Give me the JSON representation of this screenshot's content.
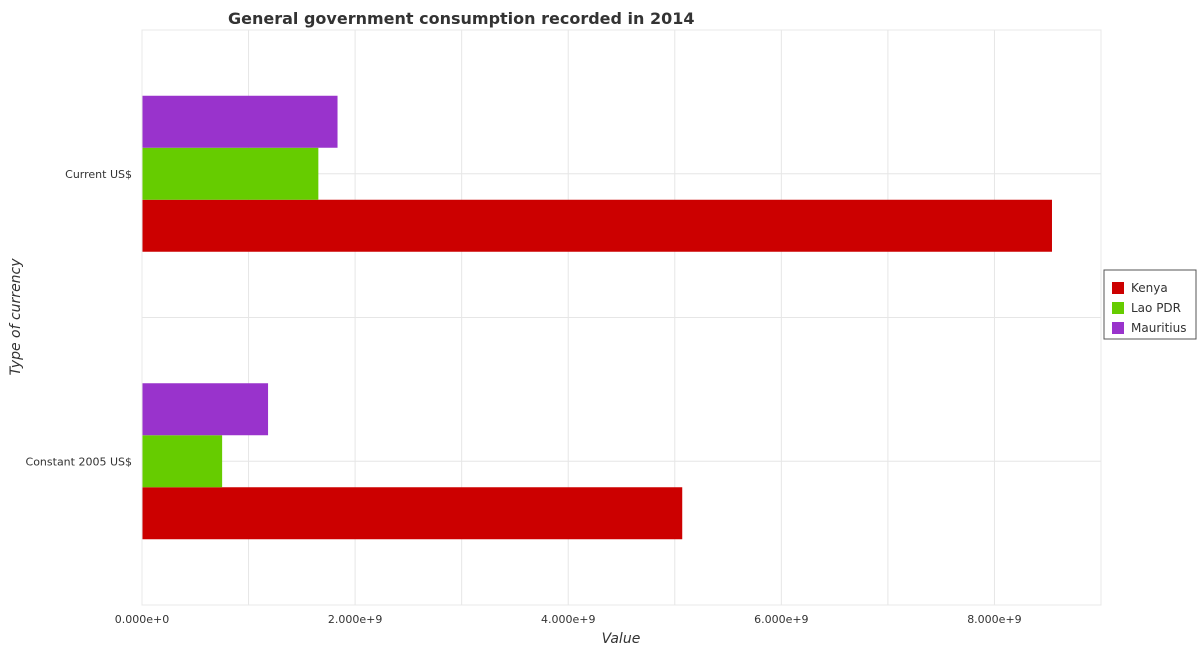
{
  "chart_data": {
    "type": "bar",
    "orientation": "horizontal",
    "title": "General government consumption recorded in 2014",
    "xlabel": "Value",
    "ylabel": "Type of currency",
    "categories": [
      "Constant 2005 US$",
      "Current US$"
    ],
    "series": [
      {
        "name": "Kenya",
        "color": "#cc0000",
        "values": [
          5070000000,
          8540000000
        ]
      },
      {
        "name": "Lao PDR",
        "color": "#66cc00",
        "values": [
          752000000,
          1655000000
        ]
      },
      {
        "name": "Mauritius",
        "color": "#9933cc",
        "values": [
          1183000000,
          1835000000
        ]
      }
    ],
    "xticks": [
      {
        "value": 0,
        "label": "0.000e+0"
      },
      {
        "value": 2000000000,
        "label": "2.000e+9"
      },
      {
        "value": 4000000000,
        "label": "4.000e+9"
      },
      {
        "value": 6000000000,
        "label": "6.000e+9"
      },
      {
        "value": 8000000000,
        "label": "8.000e+9"
      }
    ],
    "xlim": [
      0,
      9000000000
    ],
    "grid": true,
    "legend_position": "right"
  }
}
